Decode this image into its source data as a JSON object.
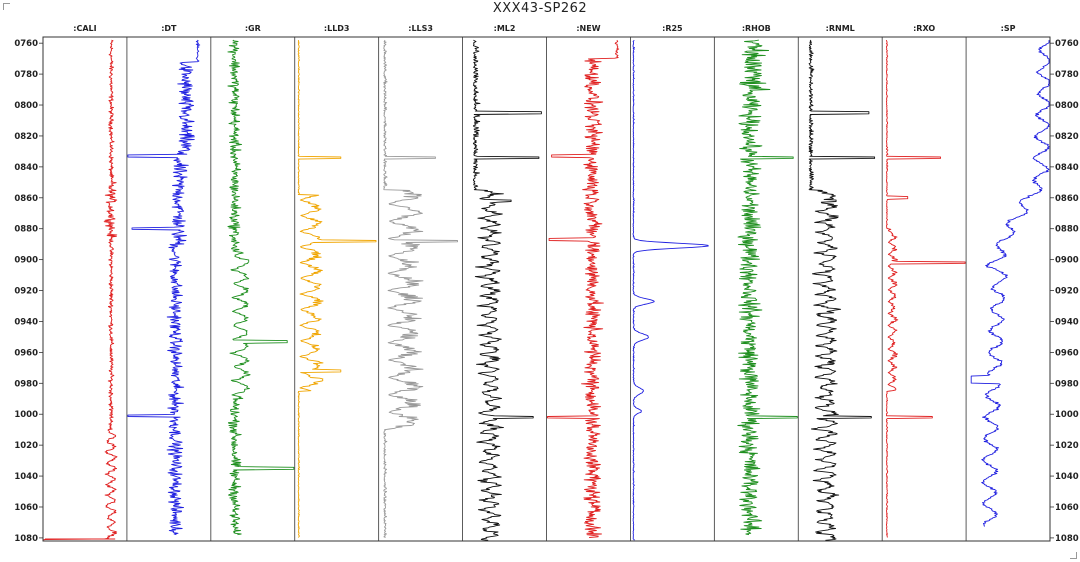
{
  "chart_data": {
    "type": "line",
    "title": "XXX43-SP262",
    "depth_axis": {
      "range": [
        756,
        1082
      ],
      "ticks": [
        "0760",
        "0780",
        "0800",
        "0820",
        "0840",
        "0860",
        "0880",
        "0900",
        "0920",
        "0940",
        "0960",
        "0980",
        "1000",
        "1020",
        "1040",
        "1060",
        "1080"
      ]
    },
    "tracks": [
      {
        "name": ":CALI",
        "color": "#e02020",
        "kind": "cali"
      },
      {
        "name": ":DT",
        "color": "#1f1fe0",
        "kind": "dt"
      },
      {
        "name": ":GR",
        "color": "#1f8f1f",
        "kind": "gr"
      },
      {
        "name": ":LLD3",
        "color": "#f0a500",
        "kind": "lld"
      },
      {
        "name": ":LLS3",
        "color": "#999999",
        "kind": "lls"
      },
      {
        "name": ":ML2",
        "color": "#111111",
        "kind": "ml"
      },
      {
        "name": ":NEW",
        "color": "#e02020",
        "kind": "new"
      },
      {
        "name": ":R25",
        "color": "#1f1fe0",
        "kind": "r25"
      },
      {
        "name": ":RHOB",
        "color": "#1f8f1f",
        "kind": "rhob"
      },
      {
        "name": ":RNML",
        "color": "#111111",
        "kind": "rnml"
      },
      {
        "name": ":RXO",
        "color": "#e02020",
        "kind": "rxo"
      },
      {
        "name": ":SP",
        "color": "#1f1fe0",
        "kind": "sp"
      }
    ]
  }
}
